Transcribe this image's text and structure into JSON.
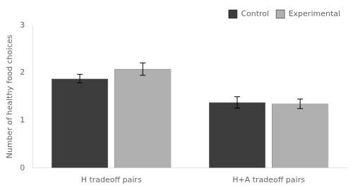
{
  "chart_data": {
    "type": "bar",
    "categories": [
      "H tradeoff pairs",
      "H+A tradeoff pairs"
    ],
    "series": [
      {
        "name": "Control",
        "color": "#3d3d3d",
        "values": [
          1.88,
          1.38
        ],
        "errors": [
          0.09,
          0.12
        ]
      },
      {
        "name": "Experimental",
        "color": "#b0b0b0",
        "values": [
          2.08,
          1.35
        ],
        "errors": [
          0.13,
          0.1
        ]
      }
    ],
    "ylabel": "Number of healthy food choices",
    "ylim": [
      0,
      3
    ],
    "yticks": [
      0,
      1,
      2,
      3
    ],
    "grid": false,
    "legend": "upper right"
  }
}
